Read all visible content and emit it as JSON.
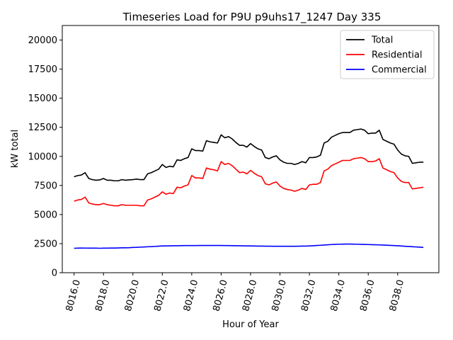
{
  "chart_data": {
    "type": "line",
    "title": "Timeseries Load for P9U p9uhs17_1247  Day 335",
    "xlabel": "Hour of Year",
    "ylabel": "kW total",
    "xlim": [
      8015.2,
      8040.8
    ],
    "ylim": [
      0,
      21250
    ],
    "xticks": [
      8016,
      8018,
      8020,
      8022,
      8024,
      8026,
      8028,
      8030,
      8032,
      8034,
      8036,
      8038
    ],
    "xtick_labels": [
      "8016.0",
      "8018.0",
      "8020.0",
      "8022.0",
      "8024.0",
      "8026.0",
      "8028.0",
      "8030.0",
      "8032.0",
      "8034.0",
      "8036.0",
      "8038.0"
    ],
    "yticks": [
      0,
      2500,
      5000,
      7500,
      10000,
      12500,
      15000,
      17500,
      20000
    ],
    "ytick_labels": [
      "0",
      "2500",
      "5000",
      "7500",
      "10000",
      "12500",
      "15000",
      "17500",
      "20000"
    ],
    "legend_position": "top-right",
    "x": [
      8016.0,
      8016.25,
      8016.5,
      8016.75,
      8017.0,
      8017.25,
      8017.5,
      8017.75,
      8018.0,
      8018.25,
      8018.5,
      8018.75,
      8019.0,
      8019.25,
      8019.5,
      8019.75,
      8020.0,
      8020.25,
      8020.5,
      8020.75,
      8021.0,
      8021.25,
      8021.5,
      8021.75,
      8022.0,
      8022.25,
      8022.5,
      8022.75,
      8023.0,
      8023.25,
      8023.5,
      8023.75,
      8024.0,
      8024.25,
      8024.5,
      8024.75,
      8025.0,
      8025.25,
      8025.5,
      8025.75,
      8026.0,
      8026.25,
      8026.5,
      8026.75,
      8027.0,
      8027.25,
      8027.5,
      8027.75,
      8028.0,
      8028.25,
      8028.5,
      8028.75,
      8029.0,
      8029.25,
      8029.5,
      8029.75,
      8030.0,
      8030.25,
      8030.5,
      8030.75,
      8031.0,
      8031.25,
      8031.5,
      8031.75,
      8032.0,
      8032.25,
      8032.5,
      8032.75,
      8033.0,
      8033.25,
      8033.5,
      8033.75,
      8034.0,
      8034.25,
      8034.5,
      8034.75,
      8035.0,
      8035.25,
      8035.5,
      8035.75,
      8036.0,
      8036.25,
      8036.5,
      8036.75,
      8037.0,
      8037.25,
      8037.5,
      8037.75,
      8038.0,
      8038.25,
      8038.5,
      8038.75,
      8039.0,
      8039.25,
      8039.5,
      8039.75
    ],
    "series": [
      {
        "name": "Total",
        "color": "#000000",
        "values": [
          8250,
          8350,
          8400,
          8600,
          8100,
          8000,
          7950,
          7980,
          8100,
          7950,
          7950,
          7900,
          7900,
          8000,
          7950,
          7980,
          8000,
          8050,
          8000,
          8000,
          8500,
          8600,
          8750,
          8900,
          9300,
          9050,
          9150,
          9100,
          9700,
          9650,
          9800,
          9900,
          10650,
          10500,
          10500,
          10450,
          11350,
          11250,
          11200,
          11150,
          11850,
          11600,
          11700,
          11500,
          11200,
          10950,
          10950,
          10800,
          11100,
          10850,
          10650,
          10550,
          9900,
          9800,
          9950,
          10050,
          9700,
          9500,
          9400,
          9400,
          9300,
          9400,
          9550,
          9450,
          9900,
          9900,
          9950,
          10100,
          11150,
          11300,
          11650,
          11800,
          11950,
          12050,
          12050,
          12050,
          12250,
          12300,
          12350,
          12250,
          11950,
          12000,
          12000,
          12250,
          11450,
          11300,
          11150,
          11050,
          10550,
          10200,
          10050,
          10000,
          9400,
          9450,
          9500,
          9500
        ]
      },
      {
        "name": "Residential",
        "color": "#ff0000",
        "values": [
          6150,
          6250,
          6300,
          6500,
          6000,
          5900,
          5850,
          5850,
          5950,
          5850,
          5800,
          5750,
          5750,
          5850,
          5800,
          5800,
          5800,
          5800,
          5750,
          5750,
          6250,
          6350,
          6500,
          6650,
          6950,
          6750,
          6850,
          6800,
          7350,
          7300,
          7450,
          7550,
          8350,
          8150,
          8150,
          8100,
          9000,
          8900,
          8850,
          8750,
          9550,
          9300,
          9400,
          9200,
          8900,
          8600,
          8650,
          8500,
          8800,
          8550,
          8350,
          8250,
          7650,
          7550,
          7700,
          7800,
          7450,
          7250,
          7150,
          7100,
          7000,
          7100,
          7250,
          7150,
          7550,
          7600,
          7600,
          7750,
          8750,
          8900,
          9200,
          9350,
          9500,
          9650,
          9650,
          9650,
          9800,
          9850,
          9900,
          9800,
          9550,
          9550,
          9600,
          9800,
          9000,
          8850,
          8700,
          8600,
          8150,
          7850,
          7750,
          7750,
          7200,
          7250,
          7300,
          7350
        ]
      },
      {
        "name": "Commercial",
        "color": "#0000ff",
        "values": [
          2100,
          2110,
          2120,
          2115,
          2110,
          2110,
          2110,
          2100,
          2110,
          2110,
          2120,
          2120,
          2130,
          2140,
          2140,
          2150,
          2170,
          2180,
          2200,
          2210,
          2230,
          2240,
          2260,
          2280,
          2300,
          2305,
          2310,
          2315,
          2320,
          2325,
          2330,
          2335,
          2335,
          2335,
          2340,
          2340,
          2340,
          2340,
          2340,
          2340,
          2340,
          2335,
          2330,
          2325,
          2320,
          2315,
          2310,
          2305,
          2300,
          2295,
          2290,
          2285,
          2280,
          2280,
          2275,
          2275,
          2275,
          2275,
          2275,
          2275,
          2275,
          2280,
          2285,
          2290,
          2300,
          2320,
          2340,
          2360,
          2380,
          2400,
          2420,
          2440,
          2450,
          2455,
          2460,
          2460,
          2455,
          2450,
          2440,
          2430,
          2420,
          2410,
          2400,
          2390,
          2380,
          2365,
          2350,
          2335,
          2315,
          2295,
          2275,
          2255,
          2235,
          2215,
          2195,
          2175
        ]
      }
    ]
  }
}
